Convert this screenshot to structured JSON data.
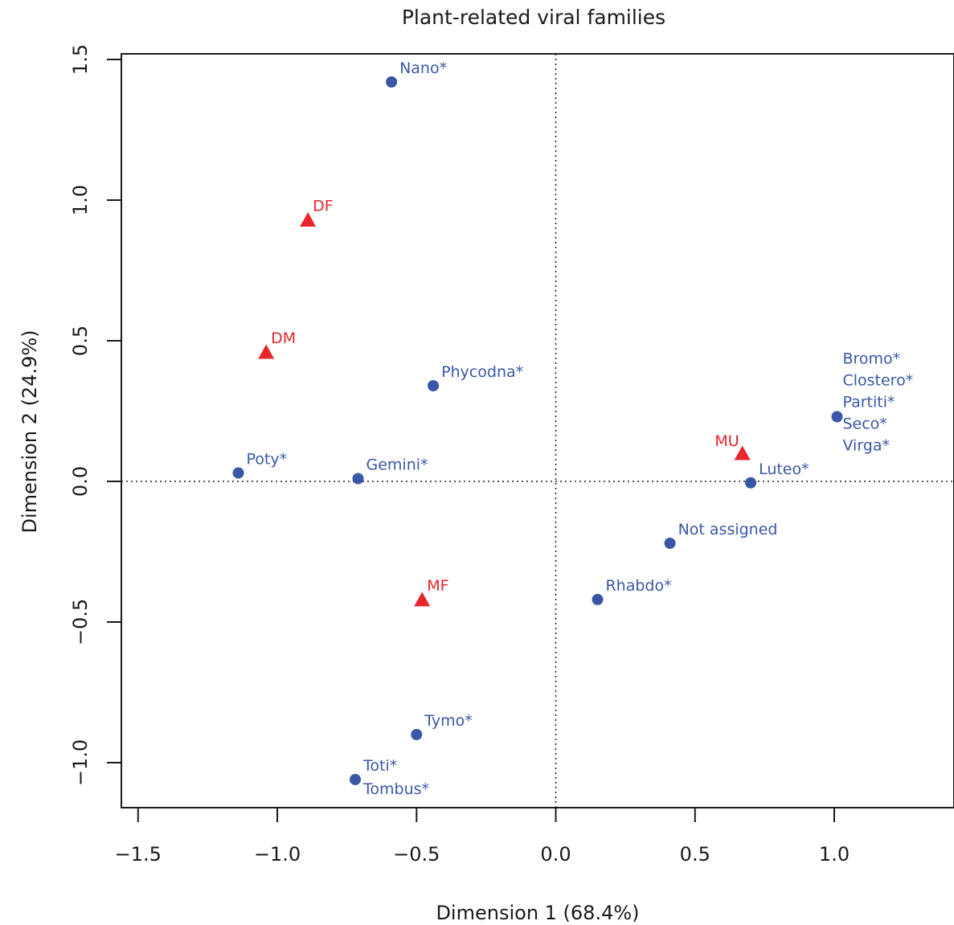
{
  "chart_data": {
    "type": "scatter",
    "title": "Plant-related viral families",
    "xlabel": "Dimension 1 (68.4%)",
    "ylabel": "Dimension 2 (24.9%)",
    "xlim": [
      -1.56,
      1.43
    ],
    "ylim": [
      -1.16,
      1.52
    ],
    "x_ticks": [
      -1.5,
      -1.0,
      -0.5,
      0.0,
      0.5,
      1.0
    ],
    "x_tick_labels": [
      "−1.5",
      "−1.0",
      "−0.5",
      "0.0",
      "0.5",
      "1.0"
    ],
    "y_ticks": [
      -1.0,
      -0.5,
      0.0,
      0.5,
      1.0,
      1.5
    ],
    "y_tick_labels": [
      "−1.0",
      "−0.5",
      "0.0",
      "0.5",
      "1.0",
      "1.5"
    ],
    "reference_lines": {
      "x": 0.0,
      "y": 0.0,
      "style": "dotted"
    },
    "grid": false,
    "colors": {
      "families": "#3a57a7",
      "groups": "#e8252b"
    },
    "series": [
      {
        "marker": "circle",
        "color": "#3a57a7",
        "points": [
          {
            "x": -0.59,
            "y": 1.42,
            "labels": [
              "Nano*"
            ]
          },
          {
            "x": -0.44,
            "y": 0.34,
            "labels": [
              "Phycodna*"
            ]
          },
          {
            "x": -1.14,
            "y": 0.03,
            "labels": [
              "Poty*"
            ]
          },
          {
            "x": -0.71,
            "y": 0.01,
            "labels": [
              "Gemini*"
            ]
          },
          {
            "x": 1.01,
            "y": 0.23,
            "labels": [
              "Bromo*",
              "Clostero*",
              "Partiti*",
              "Seco*",
              "Virga*"
            ]
          },
          {
            "x": 0.7,
            "y": -0.005,
            "labels": [
              "Luteo*"
            ]
          },
          {
            "x": 0.41,
            "y": -0.22,
            "labels": [
              "Not assigned"
            ]
          },
          {
            "x": 0.15,
            "y": -0.42,
            "labels": [
              "Rhabdo*"
            ]
          },
          {
            "x": -0.5,
            "y": -0.9,
            "labels": [
              "Tymo*"
            ]
          },
          {
            "x": -0.72,
            "y": -1.06,
            "labels": [
              "Toti*",
              "Tombus*"
            ]
          }
        ]
      },
      {
        "marker": "triangle",
        "color": "#e8252b",
        "points": [
          {
            "x": -0.89,
            "y": 0.93,
            "labels": [
              "DF"
            ]
          },
          {
            "x": -1.04,
            "y": 0.46,
            "labels": [
              "DM"
            ]
          },
          {
            "x": 0.67,
            "y": 0.1,
            "labels": [
              "MU"
            ]
          },
          {
            "x": -0.48,
            "y": -0.42,
            "labels": [
              "MF"
            ]
          }
        ]
      }
    ]
  }
}
